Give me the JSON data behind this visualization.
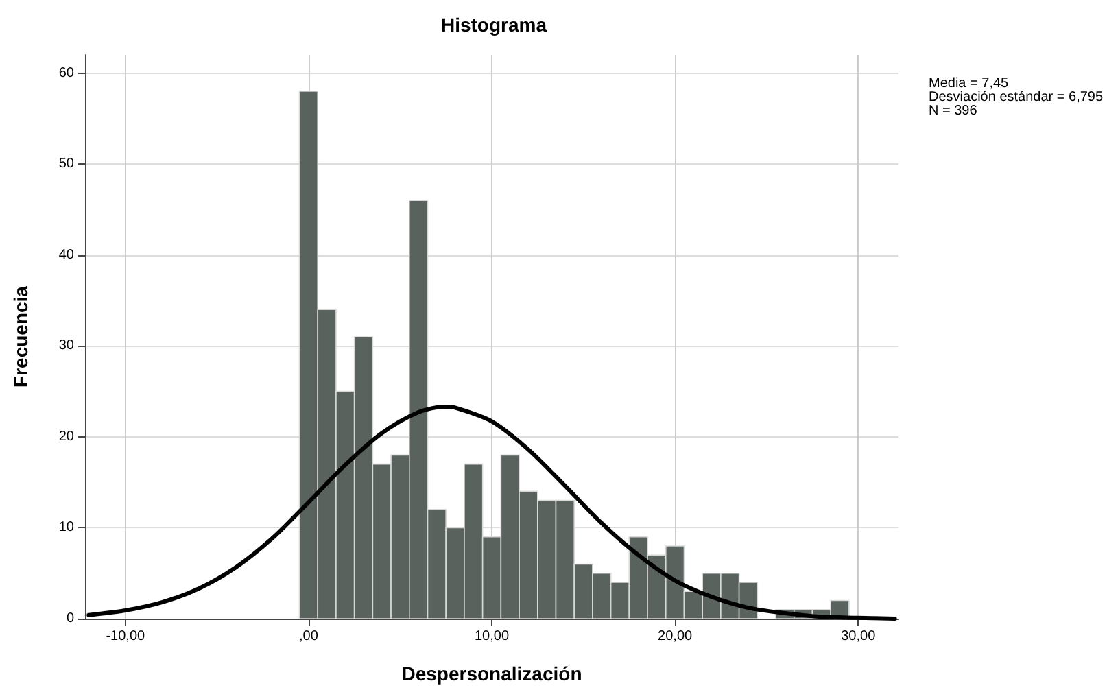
{
  "chart_data": {
    "type": "histogram",
    "title": "Histograma",
    "xlabel": "Despersonalización",
    "ylabel": "Frecuencia",
    "bins": [
      -0.5,
      0.5,
      1.5,
      2.5,
      3.5,
      4.5,
      5.5,
      6.5,
      7.5,
      8.5,
      9.5,
      10.5,
      11.5,
      12.5,
      13.5,
      14.5,
      15.5,
      16.5,
      17.5,
      18.5,
      19.5,
      20.5,
      21.5,
      22.5,
      23.5,
      24.5,
      25.5,
      26.5,
      27.5,
      28.5,
      29.5
    ],
    "values": [
      58,
      34,
      25,
      31,
      17,
      18,
      46,
      12,
      10,
      17,
      9,
      18,
      14,
      13,
      13,
      6,
      5,
      4,
      9,
      7,
      8,
      3,
      5,
      5,
      4,
      0,
      1,
      1,
      1,
      2
    ],
    "color": "#59625c",
    "series": [
      {
        "type": "line",
        "color": "#000000",
        "x": [
          -12,
          -10,
          -8,
          -6,
          -4,
          -2,
          0,
          2,
          4,
          6,
          7.45,
          8,
          10,
          12,
          14,
          16,
          18,
          20,
          22,
          24,
          26,
          28,
          30,
          32
        ],
        "values": [
          0.4,
          0.9,
          1.8,
          3.3,
          5.6,
          8.8,
          12.8,
          16.9,
          20.4,
          22.7,
          23.3,
          23.2,
          21.7,
          18.6,
          14.6,
          10.5,
          7.0,
          4.2,
          2.4,
          1.2,
          0.6,
          0.2,
          0.1,
          0.0
        ]
      }
    ],
    "xlim": [
      -12.2,
      32.2
    ],
    "xticks": [
      {
        "value": -10,
        "label": "-10,00"
      },
      {
        "value": 0,
        "label": ",00"
      },
      {
        "value": 10,
        "label": "10,00"
      },
      {
        "value": 20,
        "label": "20,00"
      },
      {
        "value": 30,
        "label": "30,00"
      }
    ],
    "ylim": [
      0,
      62
    ],
    "yticks": [
      0,
      10,
      20,
      30,
      40,
      50,
      60
    ],
    "grid": true,
    "marker": "none",
    "line_style": "solid",
    "annotations": [
      "Media = 7,45",
      "Desviación estándar = 6,795",
      "N = 396"
    ]
  }
}
